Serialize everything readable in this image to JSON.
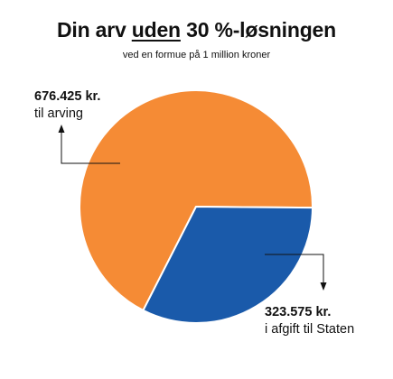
{
  "title": {
    "pre": "Din arv ",
    "underlined": "uden",
    "post": " 30 %-løsningen"
  },
  "subtitle": "ved en formue på 1 million kroner",
  "chart_data": {
    "type": "pie",
    "title": "Din arv uden 30 %-løsningen",
    "subtitle": "ved en formue på 1 million kroner",
    "slices": [
      {
        "value_label": "676.425 kr.",
        "caption": "til arving",
        "value": 676425,
        "color": "#f58b35"
      },
      {
        "value_label": "323.575 kr.",
        "caption": "i afgift til Staten",
        "value": 323575,
        "color": "#1a5aaa"
      }
    ],
    "legend": "none"
  }
}
